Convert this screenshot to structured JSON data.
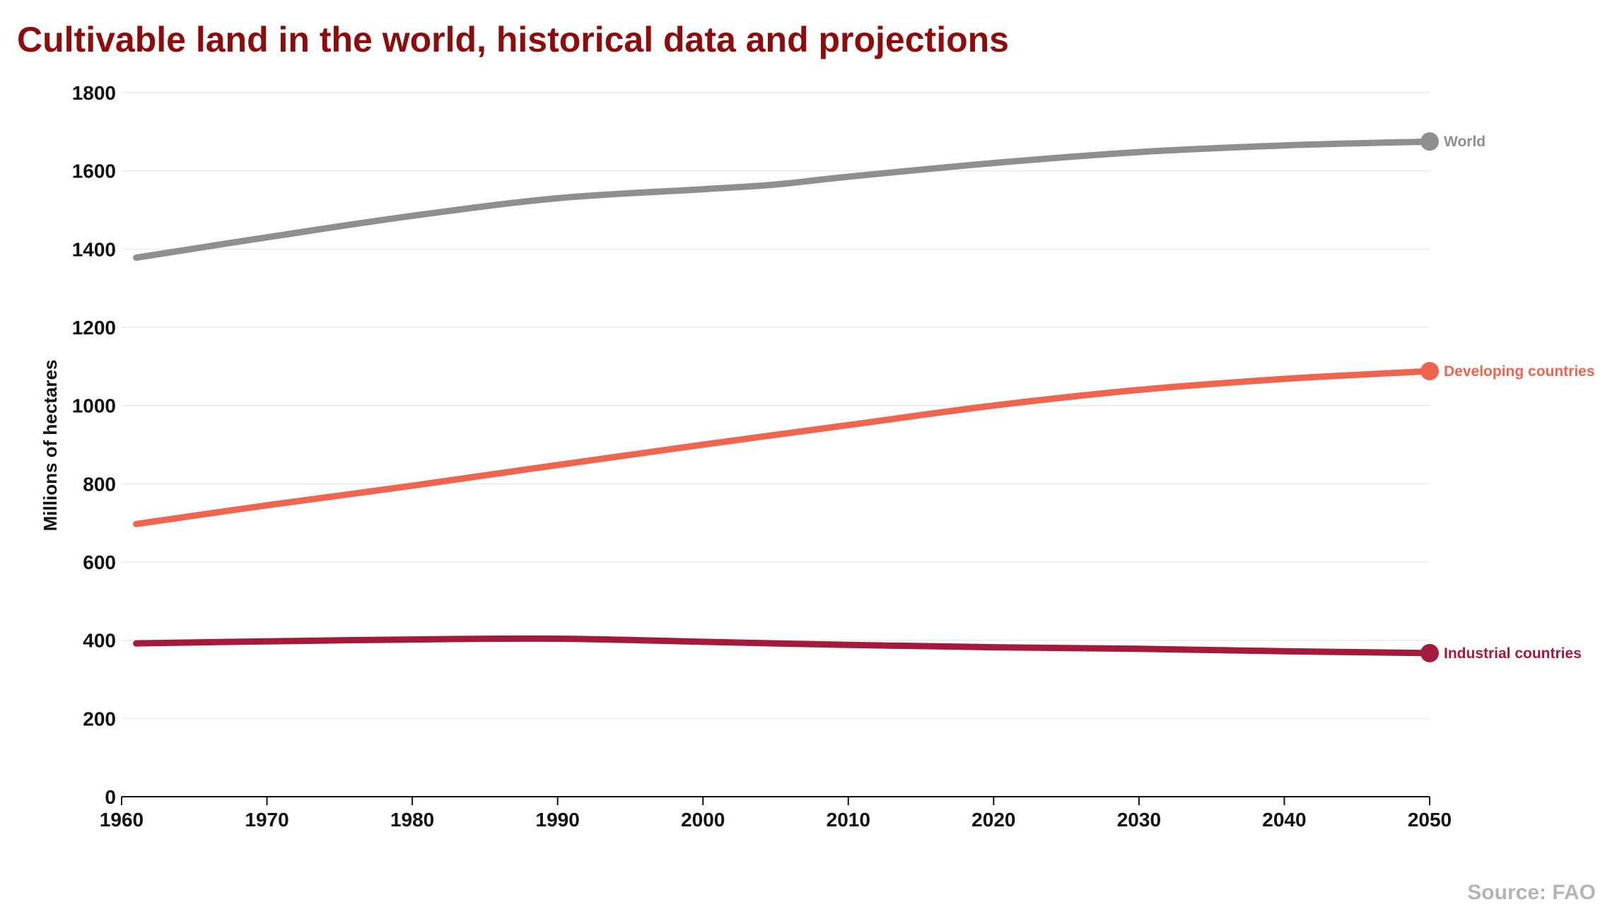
{
  "title": "Cultivable land in the world, historical data and projections",
  "source": "Source: FAO",
  "chart_data": {
    "type": "line",
    "title": "Cultivable land in the world, historical data and projections",
    "xlabel": "",
    "ylabel": "Millions of hectares",
    "xlim": [
      1960,
      2050
    ],
    "ylim": [
      0,
      1800
    ],
    "x_ticks": [
      1960,
      1970,
      1980,
      1990,
      2000,
      2010,
      2020,
      2030,
      2040,
      2050
    ],
    "y_ticks": [
      0,
      200,
      400,
      600,
      800,
      1000,
      1200,
      1400,
      1600,
      1800
    ],
    "grid": true,
    "legend": "end-of-line labels",
    "series": [
      {
        "name": "World",
        "color": "#8f8f8f",
        "x": [
          1961,
          1970,
          1980,
          1990,
          2000,
          2005,
          2010,
          2020,
          2030,
          2040,
          2050
        ],
        "y": [
          1378,
          1430,
          1485,
          1530,
          1553,
          1565,
          1585,
          1620,
          1648,
          1665,
          1675
        ]
      },
      {
        "name": "Developing countries",
        "color": "#ee6550",
        "x": [
          1961,
          1970,
          1980,
          1990,
          2000,
          2010,
          2020,
          2030,
          2040,
          2050
        ],
        "y": [
          697,
          745,
          795,
          848,
          900,
          950,
          1000,
          1040,
          1068,
          1088
        ]
      },
      {
        "name": "Industrial countries",
        "color": "#a41a3a",
        "x": [
          1961,
          1970,
          1980,
          1990,
          2000,
          2010,
          2020,
          2030,
          2040,
          2050
        ],
        "y": [
          392,
          397,
          402,
          404,
          396,
          388,
          382,
          378,
          372,
          367
        ]
      }
    ]
  }
}
